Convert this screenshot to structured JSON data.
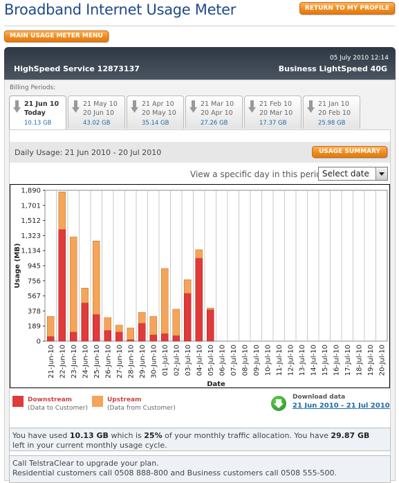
{
  "page": {
    "title": "Broadband Internet Usage Meter",
    "return_label": "RETURN TO MY PROFILE",
    "menu_label": "MAIN USAGE METER MENU"
  },
  "header": {
    "datetime": "05 July 2010 12:14",
    "service": "HighSpeed Service 12873137",
    "plan": "Business LightSpeed 40G"
  },
  "billing": {
    "label": "Billing Periods:",
    "tabs": [
      {
        "l1": "21 Jun 10",
        "l2": "Today",
        "usage": "10.13 GB",
        "active": true
      },
      {
        "l1": "21 May 10",
        "l2": "20 Jun 10",
        "usage": "43.02 GB",
        "active": false
      },
      {
        "l1": "21 Apr 10",
        "l2": "20 May 10",
        "usage": "35.14 GB",
        "active": false
      },
      {
        "l1": "21 Mar 10",
        "l2": "20 Apr 10",
        "usage": "27.26 GB",
        "active": false
      },
      {
        "l1": "21 Feb 10",
        "l2": "20 Mar 10",
        "usage": "17.37 GB",
        "active": false
      },
      {
        "l1": "21 Jan 10",
        "l2": "20 Feb 10",
        "usage": "25.98 GB",
        "active": false
      }
    ]
  },
  "daily": {
    "label": "Daily Usage: 21 Jun 2010 - 20 Jul 2010",
    "summary_label": "USAGE SUMMARY",
    "select_label": "View a specific day in this period:",
    "select_value": "Select date"
  },
  "legend": {
    "down_title": "Downstream",
    "down_sub": "(Data to Customer)",
    "up_title": "Upstream",
    "up_sub": "(Data from Customer)",
    "down_color": "#e03a3a",
    "up_color": "#f5a55a"
  },
  "download": {
    "title": "Download data",
    "link": "21 Jun 2010 - 21 Jul 2010"
  },
  "info": {
    "line1_a": "You have used ",
    "used": "10.13 GB",
    "line1_b": " which is ",
    "pct": "25%",
    "line1_c": " of your monthly traffic allocation. You have ",
    "left": "29.87 GB",
    "line1_d": "left in your current monthly usage cycle.",
    "line2": "Call TelstraClear to upgrade your plan.",
    "line3": "Residential customers call 0508 888-800 and Business customers call 0508 555-500."
  },
  "chart_data": {
    "type": "bar",
    "stacked": true,
    "xlabel": "Date",
    "ylabel": "Usage (MB)",
    "yticks": [
      "0",
      "189",
      "378",
      "567",
      "756",
      "945",
      "1,134",
      "1,323",
      "1,512",
      "1,701",
      "1,890"
    ],
    "ylim": [
      0,
      1890
    ],
    "categories": [
      "21-Jun-10",
      "22-Jun-10",
      "23-Jun-10",
      "24-Jun-10",
      "25-Jun-10",
      "26-Jun-10",
      "27-Jun-10",
      "28-Jun-10",
      "29-Jun-10",
      "30-Jun-10",
      "01-Jul-10",
      "02-Jul-10",
      "03-Jul-10",
      "04-Jul-10",
      "05-Jul-10",
      "06-Jul-10",
      "07-Jul-10",
      "08-Jul-10",
      "09-Jul-10",
      "10-Jul-10",
      "11-Jul-10",
      "12-Jul-10",
      "13-Jul-10",
      "14-Jul-10",
      "15-Jul-10",
      "16-Jul-10",
      "17-Jul-10",
      "18-Jul-10",
      "19-Jul-10",
      "20-Jul-10"
    ],
    "series": [
      {
        "name": "Downstream",
        "values": [
          60,
          1400,
          115,
          480,
          335,
          135,
          115,
          20,
          225,
          80,
          95,
          70,
          600,
          1040,
          395,
          0,
          0,
          0,
          0,
          0,
          0,
          0,
          0,
          0,
          0,
          0,
          0,
          0,
          0,
          0
        ]
      },
      {
        "name": "Upstream",
        "values": [
          250,
          470,
          1190,
          185,
          920,
          160,
          85,
          145,
          135,
          230,
          815,
          330,
          170,
          105,
          20,
          0,
          0,
          0,
          0,
          0,
          0,
          0,
          0,
          0,
          0,
          0,
          0,
          0,
          0,
          0
        ]
      }
    ]
  }
}
